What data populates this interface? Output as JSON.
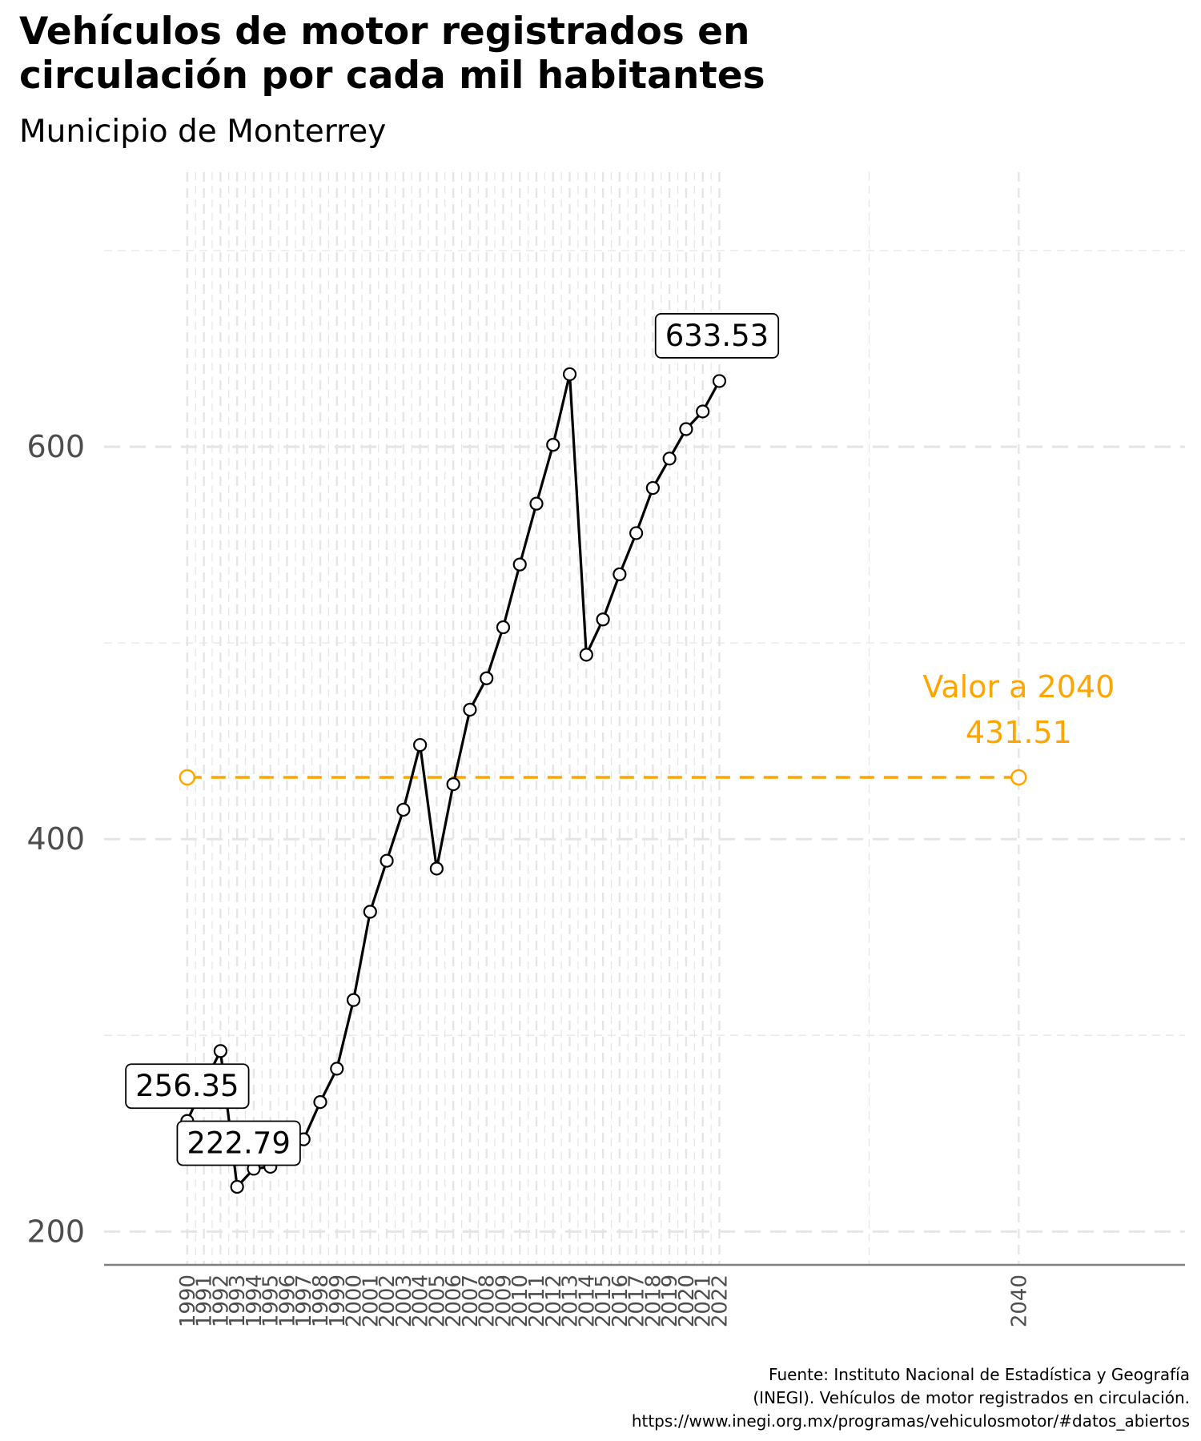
{
  "title_lines": [
    "Vehículos de motor registrados en",
    "circulación por cada mil habitantes"
  ],
  "subtitle": "Municipio de Monterrey",
  "caption_lines": [
    "Fuente: Instituto Nacional de Estadística y Geografía",
    "(INEGI). Vehículos de motor registrados en circulación.",
    "https://www.inegi.org.mx/programas/vehiculosmotor/#datos_abiertos"
  ],
  "colors": {
    "line": "#000000",
    "reference": "#FFA500",
    "grid": "#e5e5e5",
    "axis": "#7f7f7f"
  },
  "chart_data": {
    "type": "line",
    "title": "Vehículos de motor registrados en circulación por cada mil habitantes",
    "subtitle": "Municipio de Monterrey",
    "xlabel": "",
    "ylabel": "",
    "x": [
      1990,
      1991,
      1992,
      1993,
      1994,
      1995,
      1996,
      1997,
      1998,
      1999,
      2000,
      2001,
      2002,
      2003,
      2004,
      2005,
      2006,
      2007,
      2008,
      2009,
      2010,
      2011,
      2012,
      2013,
      2014,
      2015,
      2016,
      2017,
      2018,
      2019,
      2020,
      2021,
      2022
    ],
    "series": [
      {
        "values": [
          256.35,
          275,
          292,
          222.79,
          232,
          233,
          238,
          247,
          266,
          283,
          318,
          363,
          389,
          415,
          448,
          385,
          428,
          466,
          482,
          508,
          540,
          571,
          601,
          637,
          494,
          512,
          535,
          556,
          579,
          594,
          609,
          618,
          633.53
        ]
      }
    ],
    "labeled_points": [
      {
        "x": 1990,
        "label": "256.35"
      },
      {
        "x": 1993,
        "label": "222.79"
      },
      {
        "x": 2022,
        "label": "633.53"
      }
    ],
    "reference": {
      "x_start": 1990,
      "x_end": 2040,
      "value": 431.51,
      "annotation": [
        "Valor a 2040",
        "431.51"
      ]
    },
    "y_ticks": [
      200,
      400,
      600
    ],
    "x_ticks": [
      "1990",
      "1991",
      "1992",
      "1993",
      "1994",
      "1995",
      "1996",
      "1997",
      "1998",
      "1999",
      "2000",
      "2001",
      "2002",
      "2003",
      "2004",
      "2005",
      "2006",
      "2007",
      "2008",
      "2009",
      "2010",
      "2011",
      "2012",
      "2013",
      "2014",
      "2015",
      "2016",
      "2017",
      "2018",
      "2019",
      "2020",
      "2021",
      "2022",
      "2040"
    ],
    "xlim": [
      1985,
      2050
    ],
    "ylim": [
      183,
      740
    ],
    "grid": true,
    "legend": "none"
  }
}
